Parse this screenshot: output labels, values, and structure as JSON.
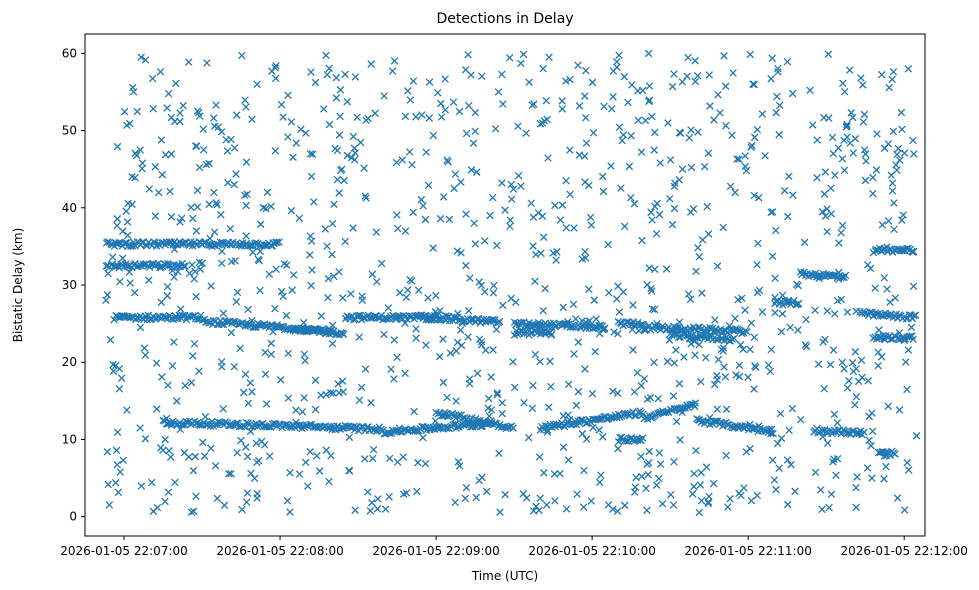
{
  "chart_data": {
    "type": "scatter",
    "title": "Detections in Delay",
    "xlabel": "Time (UTC)",
    "ylabel": "Bistatic Delay (km)",
    "marker": "x",
    "color": "#1f77b4",
    "grid": false,
    "x_ticks": [
      "2026-01-05 22:07:00",
      "2026-01-05 22:08:00",
      "2026-01-05 22:09:00",
      "2026-01-05 22:10:00",
      "2026-01-05 22:11:00",
      "2026-01-05 22:12:00"
    ],
    "xlim": [
      "2026-01-05 22:06:45",
      "2026-01-05 22:12:08"
    ],
    "y_ticks": [
      0,
      10,
      20,
      30,
      40,
      50,
      60
    ],
    "ylim": [
      -2.5,
      62.5
    ],
    "series": [
      {
        "tracks": [
          {
            "t0": "2026-01-05 22:06:53",
            "t1": "2026-01-05 22:07:30",
            "y0": 35.3,
            "y1": 35.3
          },
          {
            "t0": "2026-01-05 22:07:30",
            "t1": "2026-01-05 22:08:00",
            "y0": 35.3,
            "y1": 35.3
          },
          {
            "t0": "2026-01-05 22:06:53",
            "t1": "2026-01-05 22:07:24",
            "y0": 32.5,
            "y1": 32.5
          },
          {
            "t0": "2026-01-05 22:06:56",
            "t1": "2026-01-05 22:07:30",
            "y0": 25.8,
            "y1": 25.8
          },
          {
            "t0": "2026-01-05 22:07:30",
            "t1": "2026-01-05 22:08:20",
            "y0": 25.3,
            "y1": 24.0
          },
          {
            "t0": "2026-01-05 22:08:05",
            "t1": "2026-01-05 22:08:25",
            "y0": 24.2,
            "y1": 23.8
          },
          {
            "t0": "2026-01-05 22:08:25",
            "t1": "2026-01-05 22:09:00",
            "y0": 25.8,
            "y1": 25.8
          },
          {
            "t0": "2026-01-05 22:08:55",
            "t1": "2026-01-05 22:09:25",
            "y0": 25.8,
            "y1": 25.2
          },
          {
            "t0": "2026-01-05 22:09:30",
            "t1": "2026-01-05 22:10:05",
            "y0": 25.0,
            "y1": 24.5
          },
          {
            "t0": "2026-01-05 22:09:30",
            "t1": "2026-01-05 22:09:45",
            "y0": 23.8,
            "y1": 23.8
          },
          {
            "t0": "2026-01-05 22:10:10",
            "t1": "2026-01-05 22:10:20",
            "y0": 25.0,
            "y1": 25.0
          },
          {
            "t0": "2026-01-05 22:10:20",
            "t1": "2026-01-05 22:11:00",
            "y0": 24.5,
            "y1": 24.0
          },
          {
            "t0": "2026-01-05 22:10:30",
            "t1": "2026-01-05 22:10:55",
            "y0": 23.5,
            "y1": 23.0
          },
          {
            "t0": "2026-01-05 22:11:10",
            "t1": "2026-01-05 22:11:20",
            "y0": 27.7,
            "y1": 27.7
          },
          {
            "t0": "2026-01-05 22:11:20",
            "t1": "2026-01-05 22:11:38",
            "y0": 31.5,
            "y1": 31.0
          },
          {
            "t0": "2026-01-05 22:11:43",
            "t1": "2026-01-05 22:12:05",
            "y0": 26.3,
            "y1": 25.8
          },
          {
            "t0": "2026-01-05 22:11:48",
            "t1": "2026-01-05 22:12:04",
            "y0": 23.2,
            "y1": 23.2
          },
          {
            "t0": "2026-01-05 22:11:48",
            "t1": "2026-01-05 22:12:04",
            "y0": 34.5,
            "y1": 34.5
          },
          {
            "t0": "2026-01-05 22:07:15",
            "t1": "2026-01-05 22:08:00",
            "y0": 12.2,
            "y1": 11.8
          },
          {
            "t0": "2026-01-05 22:08:00",
            "t1": "2026-01-05 22:08:40",
            "y0": 11.8,
            "y1": 11.3
          },
          {
            "t0": "2026-01-05 22:08:40",
            "t1": "2026-01-05 22:09:20",
            "y0": 11.0,
            "y1": 12.0
          },
          {
            "t0": "2026-01-05 22:09:00",
            "t1": "2026-01-05 22:09:30",
            "y0": 13.5,
            "y1": 11.5
          },
          {
            "t0": "2026-01-05 22:09:40",
            "t1": "2026-01-05 22:10:20",
            "y0": 11.5,
            "y1": 13.5
          },
          {
            "t0": "2026-01-05 22:10:10",
            "t1": "2026-01-05 22:10:20",
            "y0": 10.0,
            "y1": 10.0
          },
          {
            "t0": "2026-01-05 22:10:20",
            "t1": "2026-01-05 22:10:40",
            "y0": 12.8,
            "y1": 14.5
          },
          {
            "t0": "2026-01-05 22:10:40",
            "t1": "2026-01-05 22:11:10",
            "y0": 12.5,
            "y1": 11.0
          },
          {
            "t0": "2026-01-05 22:11:25",
            "t1": "2026-01-05 22:11:45",
            "y0": 11.2,
            "y1": 10.8
          },
          {
            "t0": "2026-01-05 22:11:50",
            "t1": "2026-01-05 22:11:57",
            "y0": 8.2,
            "y1": 8.2
          }
        ],
        "scatter_range": {
          "x": [
            "2026-01-05 22:06:53",
            "2026-01-05 22:12:05"
          ],
          "y": [
            0.5,
            60
          ]
        }
      }
    ]
  }
}
